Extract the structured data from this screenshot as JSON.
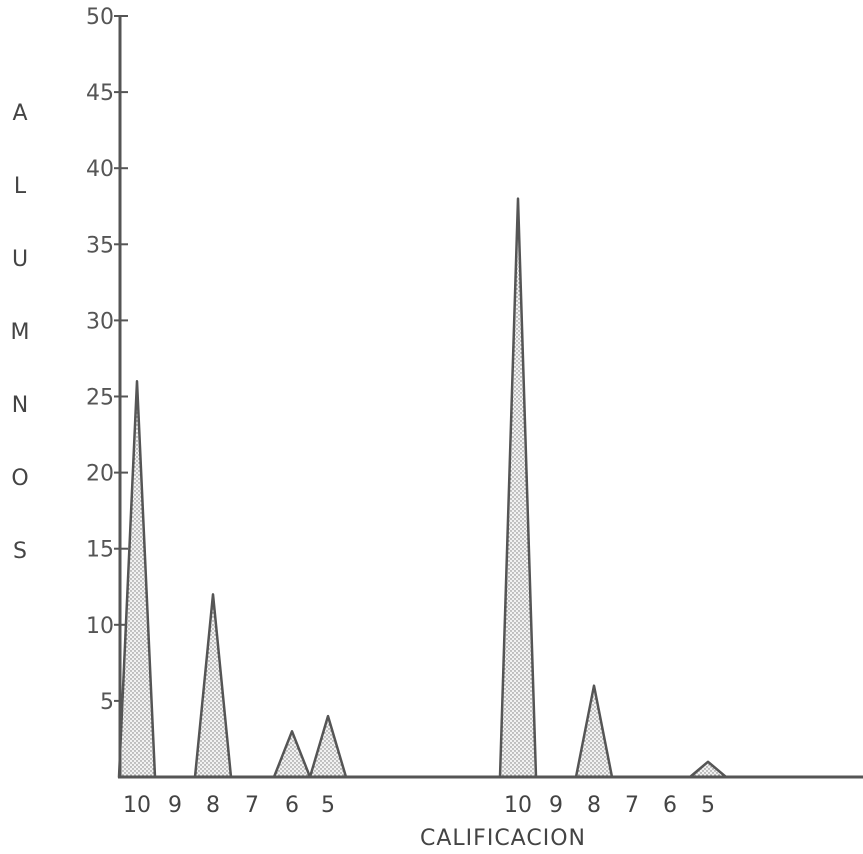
{
  "chart_data": {
    "type": "area",
    "title": "",
    "xlabel": "CALIFICACION",
    "ylabel": "ALUMNOS",
    "ylabel_letters": [
      "A",
      "L",
      "U",
      "M",
      "N",
      "O",
      "S"
    ],
    "ylim": [
      0,
      50
    ],
    "yticks": [
      5,
      10,
      15,
      20,
      25,
      30,
      35,
      40,
      45,
      50
    ],
    "ytick_labels": [
      "5",
      "10",
      "15",
      "20",
      "25",
      "30",
      "35",
      "40",
      "45",
      "50"
    ],
    "grid": false,
    "legend": "none",
    "fill_pattern": "stippled",
    "groups": [
      {
        "categories": [
          "10",
          "9",
          "8",
          "7",
          "6",
          "5"
        ],
        "values": [
          26,
          0,
          12,
          0,
          3,
          4
        ]
      },
      {
        "categories": [
          "10",
          "9",
          "8",
          "7",
          "6",
          "5"
        ],
        "values": [
          38,
          0,
          6,
          0,
          0,
          1
        ]
      }
    ]
  }
}
